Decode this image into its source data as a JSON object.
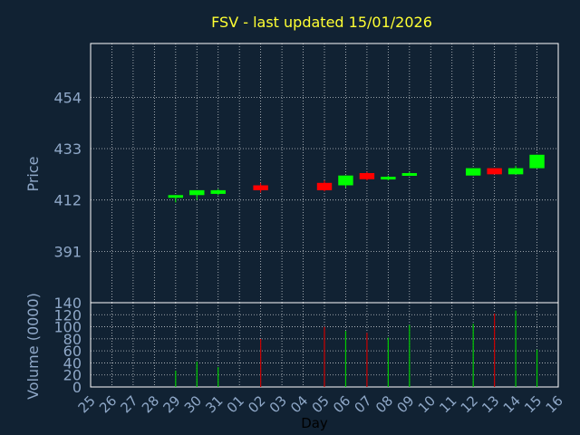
{
  "chart_data": {
    "type": "candlestick",
    "title": "FSV - last updated 15/01/2026",
    "xlabel": "Day",
    "days": [
      "25",
      "26",
      "27",
      "28",
      "29",
      "30",
      "31",
      "01",
      "02",
      "03",
      "04",
      "05",
      "06",
      "07",
      "08",
      "09",
      "10",
      "11",
      "12",
      "13",
      "14",
      "15",
      "16"
    ],
    "price": {
      "ylabel": "Price",
      "yticks": [
        391,
        412,
        433,
        454
      ],
      "ylim": [
        370,
        476
      ],
      "candles": [
        {
          "day": "29",
          "open": 413.0,
          "high": 414.0,
          "low": 411.0,
          "close": 414.0
        },
        {
          "day": "30",
          "open": 414.0,
          "high": 416.0,
          "low": 412.0,
          "close": 416.0
        },
        {
          "day": "31",
          "open": 414.5,
          "high": 416.5,
          "low": 414.0,
          "close": 416.0
        },
        {
          "day": "02",
          "open": 418.0,
          "high": 419.0,
          "low": 415.0,
          "close": 416.0
        },
        {
          "day": "05",
          "open": 419.0,
          "high": 420.0,
          "low": 415.5,
          "close": 416.0
        },
        {
          "day": "06",
          "open": 418.0,
          "high": 422.0,
          "low": 417.0,
          "close": 422.0
        },
        {
          "day": "07",
          "open": 423.0,
          "high": 423.5,
          "low": 420.0,
          "close": 420.5
        },
        {
          "day": "08",
          "open": 421.0,
          "high": 422.0,
          "low": 420.0,
          "close": 421.5
        },
        {
          "day": "09",
          "open": 422.5,
          "high": 423.5,
          "low": 422.0,
          "close": 423.0
        },
        {
          "day": "12",
          "open": 422.0,
          "high": 425.0,
          "low": 422.0,
          "close": 425.0
        },
        {
          "day": "13",
          "open": 425.0,
          "high": 425.0,
          "low": 422.5,
          "close": 422.5
        },
        {
          "day": "14",
          "open": 422.5,
          "high": 426.0,
          "low": 422.5,
          "close": 425.0
        },
        {
          "day": "15",
          "open": 425.0,
          "high": 430.5,
          "low": 425.0,
          "close": 430.5
        }
      ]
    },
    "volume": {
      "ylabel": "Volume (0000)",
      "yticks": [
        0,
        20,
        40,
        60,
        80,
        100,
        120,
        140
      ],
      "ylim": [
        0,
        140
      ],
      "bars": [
        {
          "day": "29",
          "value": 27,
          "color": "#00CC00"
        },
        {
          "day": "30",
          "value": 42,
          "color": "#00CC00"
        },
        {
          "day": "31",
          "value": 33,
          "color": "#00CC00"
        },
        {
          "day": "02",
          "value": 80,
          "color": "#CC0000"
        },
        {
          "day": "05",
          "value": 100,
          "color": "#CC0000"
        },
        {
          "day": "06",
          "value": 93,
          "color": "#00CC00"
        },
        {
          "day": "07",
          "value": 90,
          "color": "#CC0000"
        },
        {
          "day": "08",
          "value": 82,
          "color": "#00CC00"
        },
        {
          "day": "09",
          "value": 103,
          "color": "#00CC00"
        },
        {
          "day": "12",
          "value": 105,
          "color": "#00CC00"
        },
        {
          "day": "13",
          "value": 122,
          "color": "#CC0000"
        },
        {
          "day": "14",
          "value": 127,
          "color": "#00CC00"
        },
        {
          "day": "15",
          "value": 62,
          "color": "#00CC00"
        }
      ]
    },
    "colors": {
      "background": "#112233",
      "title": "#FFFF33",
      "text": "#8FA8C8",
      "grid": "#FFFFFF",
      "up": "#00FF00",
      "down": "#FF0000"
    }
  }
}
